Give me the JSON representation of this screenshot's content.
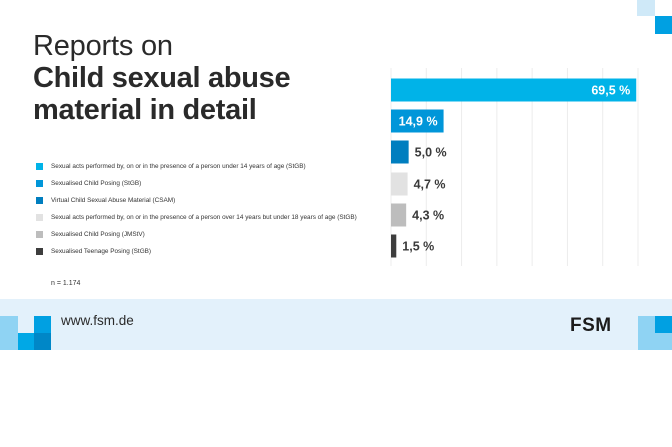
{
  "title": {
    "line1": "Reports on",
    "line2": "Child sexual abuse",
    "line3": "material in detail"
  },
  "chart_data": {
    "type": "bar",
    "orientation": "horizontal",
    "categories": [
      "Sexual acts performed by, on or in the presence of a person under 14 years of age (StGB)",
      "Sexualised Child Posing (StGB)",
      "Virtual Child Sexual Abuse Material (CSAM)",
      "Sexual acts performed by, on or in the presence of a person over 14 years but under 18 years of age (StGB)",
      "Sexualised Child Posing (JMStV)",
      "Sexualised Teenage Posing (StGB)"
    ],
    "values": [
      69.5,
      14.9,
      5.0,
      4.7,
      4.3,
      1.5
    ],
    "value_labels": [
      "69,5 %",
      "14,9 %",
      "5,0 %",
      "4,7 %",
      "4,3 %",
      "1,5 %"
    ],
    "colors": [
      "#00b3e8",
      "#0096d9",
      "#007ebf",
      "#e2e2e2",
      "#bdbdbd",
      "#3d3d3d"
    ],
    "xlim": [
      0,
      70
    ],
    "grid": true,
    "legend_position": "left",
    "n_label": "n = 1.174"
  },
  "footer": {
    "url": "www.fsm.de",
    "brand": "FSM",
    "background": "#e3f1fb"
  }
}
